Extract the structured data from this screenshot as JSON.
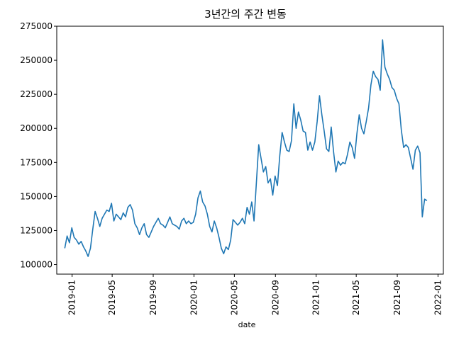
{
  "chart_data": {
    "type": "line",
    "title": "3년간의 주간 변동",
    "xlabel": "date",
    "ylabel": "",
    "ylim": [
      93000,
      275000
    ],
    "xlim": [
      "2018-11-16",
      "2022-01-17"
    ],
    "yticks": [
      100000,
      125000,
      150000,
      175000,
      200000,
      225000,
      250000,
      275000
    ],
    "xticks": [
      "2019-01",
      "2019-05",
      "2019-09",
      "2020-01",
      "2020-05",
      "2020-09",
      "2021-01",
      "2021-05",
      "2021-09",
      "2022-01"
    ],
    "grid": false,
    "series": [
      {
        "color": "#1f77b4",
        "x": [
          "2018-12-10",
          "2018-12-17",
          "2018-12-24",
          "2018-12-31",
          "2019-01-07",
          "2019-01-14",
          "2019-01-21",
          "2019-01-28",
          "2019-02-04",
          "2019-02-11",
          "2019-02-18",
          "2019-02-25",
          "2019-03-04",
          "2019-03-11",
          "2019-03-18",
          "2019-03-25",
          "2019-04-01",
          "2019-04-08",
          "2019-04-15",
          "2019-04-22",
          "2019-04-29",
          "2019-05-06",
          "2019-05-13",
          "2019-05-20",
          "2019-05-27",
          "2019-06-03",
          "2019-06-10",
          "2019-06-17",
          "2019-06-24",
          "2019-07-01",
          "2019-07-08",
          "2019-07-15",
          "2019-07-22",
          "2019-07-29",
          "2019-08-05",
          "2019-08-12",
          "2019-08-19",
          "2019-08-26",
          "2019-09-02",
          "2019-09-09",
          "2019-09-16",
          "2019-09-23",
          "2019-09-30",
          "2019-10-07",
          "2019-10-14",
          "2019-10-21",
          "2019-10-28",
          "2019-11-04",
          "2019-11-11",
          "2019-11-18",
          "2019-11-25",
          "2019-12-02",
          "2019-12-09",
          "2019-12-16",
          "2019-12-23",
          "2019-12-30",
          "2020-01-06",
          "2020-01-13",
          "2020-01-20",
          "2020-01-27",
          "2020-02-03",
          "2020-02-10",
          "2020-02-17",
          "2020-02-24",
          "2020-03-02",
          "2020-03-09",
          "2020-03-16",
          "2020-03-23",
          "2020-03-30",
          "2020-04-06",
          "2020-04-13",
          "2020-04-20",
          "2020-04-27",
          "2020-05-04",
          "2020-05-11",
          "2020-05-18",
          "2020-05-25",
          "2020-06-01",
          "2020-06-08",
          "2020-06-15",
          "2020-06-22",
          "2020-06-29",
          "2020-07-06",
          "2020-07-13",
          "2020-07-20",
          "2020-07-27",
          "2020-08-03",
          "2020-08-10",
          "2020-08-17",
          "2020-08-24",
          "2020-08-31",
          "2020-09-07",
          "2020-09-14",
          "2020-09-21",
          "2020-09-28",
          "2020-10-05",
          "2020-10-12",
          "2020-10-19",
          "2020-10-26",
          "2020-11-02",
          "2020-11-09",
          "2020-11-16",
          "2020-11-23",
          "2020-11-30",
          "2020-12-07",
          "2020-12-14",
          "2020-12-21",
          "2020-12-28",
          "2021-01-04",
          "2021-01-11",
          "2021-01-18",
          "2021-01-25",
          "2021-02-01",
          "2021-02-08",
          "2021-02-15",
          "2021-02-22",
          "2021-03-01",
          "2021-03-08",
          "2021-03-15",
          "2021-03-22",
          "2021-03-29",
          "2021-04-05",
          "2021-04-12",
          "2021-04-19",
          "2021-04-26",
          "2021-05-03",
          "2021-05-10",
          "2021-05-17",
          "2021-05-24",
          "2021-05-31",
          "2021-06-07",
          "2021-06-14",
          "2021-06-21",
          "2021-06-28",
          "2021-07-05",
          "2021-07-12",
          "2021-07-19",
          "2021-07-26",
          "2021-08-02",
          "2021-08-09",
          "2021-08-16",
          "2021-08-23",
          "2021-08-30",
          "2021-09-06",
          "2021-09-13",
          "2021-09-20",
          "2021-09-27",
          "2021-10-04",
          "2021-10-11",
          "2021-10-18",
          "2021-10-25",
          "2021-11-01",
          "2021-11-08",
          "2021-11-15",
          "2021-11-22",
          "2021-11-29"
        ],
        "values": [
          112000,
          121000,
          116000,
          127000,
          120000,
          118000,
          115000,
          117000,
          113000,
          110000,
          106000,
          112000,
          126000,
          139000,
          134000,
          128000,
          134000,
          137000,
          140000,
          139000,
          145000,
          132000,
          137000,
          135000,
          133000,
          138000,
          135000,
          142000,
          144000,
          140000,
          130000,
          127000,
          122000,
          127000,
          130000,
          122000,
          120000,
          124000,
          128000,
          131000,
          134000,
          130000,
          129000,
          127000,
          131000,
          135000,
          130000,
          129000,
          128000,
          126000,
          132000,
          134000,
          130000,
          132000,
          130000,
          131000,
          137000,
          149000,
          154000,
          146000,
          143000,
          137000,
          128000,
          124000,
          132000,
          127000,
          120000,
          112000,
          108000,
          113000,
          111000,
          118000,
          133000,
          131000,
          129000,
          131000,
          134000,
          130000,
          142000,
          137000,
          146000,
          132000,
          160000,
          188000,
          178000,
          168000,
          172000,
          160000,
          163000,
          151000,
          165000,
          158000,
          180000,
          197000,
          190000,
          184000,
          183000,
          191000,
          218000,
          200000,
          212000,
          206000,
          198000,
          197000,
          184000,
          190000,
          184000,
          190000,
          205000,
          224000,
          210000,
          198000,
          185000,
          183000,
          201000,
          183000,
          168000,
          176000,
          173000,
          175000,
          174000,
          181000,
          190000,
          186000,
          178000,
          196000,
          210000,
          200000,
          196000,
          205000,
          215000,
          232000,
          242000,
          238000,
          236000,
          228000,
          265000,
          245000,
          240000,
          236000,
          230000,
          228000,
          222000,
          218000,
          199000,
          186000,
          188000,
          186000,
          178000,
          170000,
          184000,
          187000,
          182000,
          135000,
          148000,
          147000
        ]
      }
    ]
  }
}
